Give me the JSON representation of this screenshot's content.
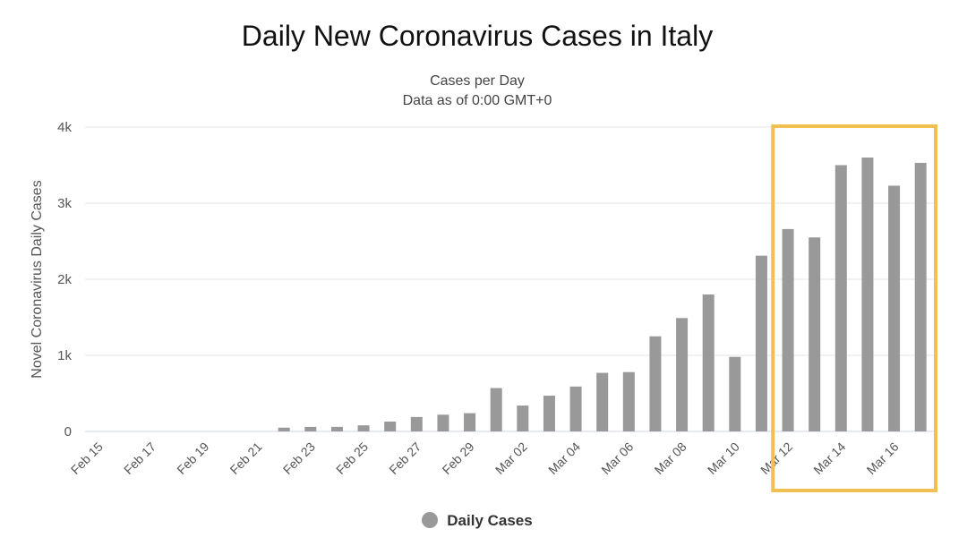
{
  "chart_data": {
    "type": "bar",
    "title": "Daily New Coronavirus Cases in Italy",
    "subtitle": "Cases per Day",
    "subtitle2": "Data as of 0:00 GMT+0",
    "ylabel": "Novel Coronavirus Daily Cases",
    "ylim": [
      0,
      4000
    ],
    "yticks": [
      {
        "value": 0,
        "label": "0"
      },
      {
        "value": 1000,
        "label": "1k"
      },
      {
        "value": 2000,
        "label": "2k"
      },
      {
        "value": 3000,
        "label": "3k"
      },
      {
        "value": 4000,
        "label": "4k"
      }
    ],
    "categories": [
      "Feb 15",
      "Feb 16",
      "Feb 17",
      "Feb 18",
      "Feb 19",
      "Feb 20",
      "Feb 21",
      "Feb 22",
      "Feb 23",
      "Feb 24",
      "Feb 25",
      "Feb 26",
      "Feb 27",
      "Feb 28",
      "Feb 29",
      "Mar 01",
      "Mar 02",
      "Mar 03",
      "Mar 04",
      "Mar 05",
      "Mar 06",
      "Mar 07",
      "Mar 08",
      "Mar 09",
      "Mar 10",
      "Mar 11",
      "Mar 12",
      "Mar 13",
      "Mar 14",
      "Mar 15",
      "Mar 16",
      "Mar 17"
    ],
    "xtick_labels": [
      "Feb 15",
      "Feb 17",
      "Feb 19",
      "Feb 21",
      "Feb 23",
      "Feb 25",
      "Feb 27",
      "Feb 29",
      "Mar 02",
      "Mar 04",
      "Mar 06",
      "Mar 08",
      "Mar 10",
      "Mar 12",
      "Mar 14",
      "Mar 16"
    ],
    "series": [
      {
        "name": "Daily Cases",
        "color": "#999999",
        "values": [
          0,
          0,
          0,
          0,
          0,
          0,
          0,
          50,
          60,
          60,
          80,
          130,
          190,
          220,
          240,
          570,
          340,
          470,
          590,
          770,
          780,
          1250,
          1490,
          1800,
          980,
          2310,
          2660,
          2550,
          3500,
          3600,
          3230,
          3530
        ]
      }
    ],
    "highlight": {
      "from": "Mar 12",
      "to": "Mar 17",
      "color": "#f0c050"
    },
    "grid": true,
    "legend": "bottom-center"
  }
}
